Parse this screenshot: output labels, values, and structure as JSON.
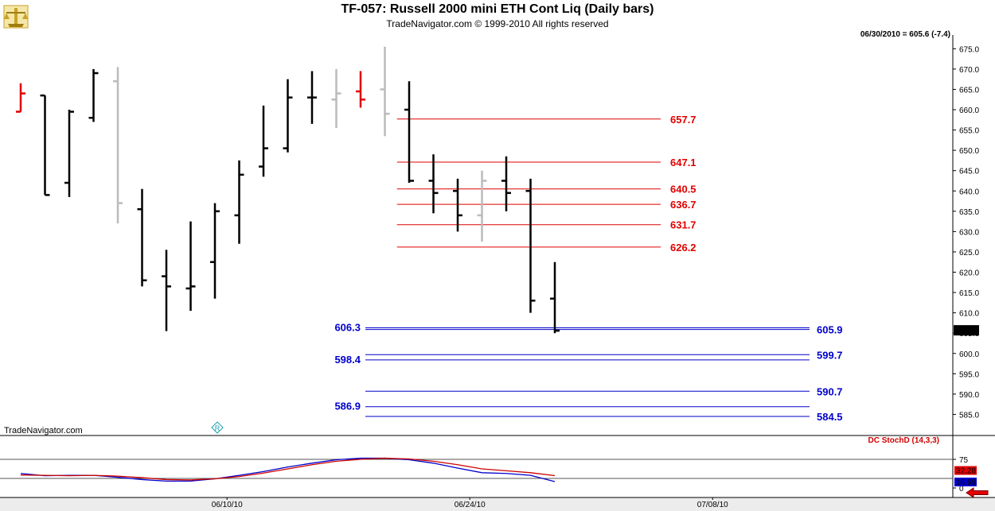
{
  "header": {
    "title": "TF-057:  Russell 2000 mini ETH Cont Liq  (Daily bars)",
    "subtitle": "TradeNavigator.com © 1999-2010 All rights reserved",
    "quote": "06/30/2010 = 605.6 (-7.4)"
  },
  "watermark": "TradeNavigator.com",
  "colors": {
    "bar_black": "#000000",
    "bar_gray": "#bbbbbb",
    "bar_red": "#e00000",
    "level_red": "#e00000",
    "level_blue": "#0000cc",
    "stoch_k": "#0000cc",
    "stoch_d": "#cc0000"
  },
  "icons": {
    "logo": "trade-navigator-logo-icon",
    "marker": "r-diamond-icon",
    "back": "red-left-arrow-icon"
  },
  "chart_data": [
    {
      "type": "ohlc",
      "ylim": [
        580,
        678
      ],
      "yticks": [
        585,
        590,
        595,
        600,
        605,
        610,
        615,
        620,
        625,
        630,
        635,
        640,
        645,
        650,
        655,
        660,
        665,
        670,
        675
      ],
      "ytick_labels": [
        "585.0",
        "590.0",
        "595.0",
        "600.0",
        "605.0",
        "610.0",
        "615.0",
        "620.0",
        "625.0",
        "630.0",
        "635.0",
        "640.0",
        "645.0",
        "650.0",
        "655.0",
        "660.0",
        "665.0",
        "670.0",
        "675.0"
      ],
      "x_labels": [
        {
          "label": "06/10/10",
          "index": 8.5
        },
        {
          "label": "06/24/10",
          "index": 18.5
        },
        {
          "label": "07/08/10",
          "index": 28.5
        }
      ],
      "last_price_label": "605.6",
      "last_price": 605.6,
      "bars": [
        {
          "o": 659.5,
          "h": 666.5,
          "l": 659.5,
          "c": 664.0,
          "color": "red"
        },
        {
          "o": 663.5,
          "h": 663.5,
          "l": 639.0,
          "c": 639.0,
          "color": "black"
        },
        {
          "o": 642.0,
          "h": 660.0,
          "l": 638.5,
          "c": 659.5,
          "color": "black"
        },
        {
          "o": 658.0,
          "h": 670.0,
          "l": 657.0,
          "c": 669.0,
          "color": "black"
        },
        {
          "o": 667.0,
          "h": 670.5,
          "l": 632.0,
          "c": 637.0,
          "color": "gray"
        },
        {
          "o": 635.5,
          "h": 640.5,
          "l": 616.5,
          "c": 618.0,
          "color": "black"
        },
        {
          "o": 619.0,
          "h": 625.5,
          "l": 605.5,
          "c": 616.5,
          "color": "black"
        },
        {
          "o": 616.0,
          "h": 632.5,
          "l": 610.5,
          "c": 616.5,
          "color": "black"
        },
        {
          "o": 622.5,
          "h": 637.0,
          "l": 613.5,
          "c": 635.0,
          "color": "black"
        },
        {
          "o": 634.0,
          "h": 647.5,
          "l": 627.0,
          "c": 644.0,
          "color": "black"
        },
        {
          "o": 646.0,
          "h": 661.0,
          "l": 643.5,
          "c": 650.5,
          "color": "black"
        },
        {
          "o": 650.5,
          "h": 667.5,
          "l": 649.5,
          "c": 663.0,
          "color": "black"
        },
        {
          "o": 663.0,
          "h": 669.5,
          "l": 656.5,
          "c": 663.0,
          "color": "black"
        },
        {
          "o": 662.5,
          "h": 670.0,
          "l": 655.5,
          "c": 664.0,
          "color": "gray"
        },
        {
          "o": 664.5,
          "h": 669.5,
          "l": 660.5,
          "c": 662.5,
          "color": "red"
        },
        {
          "o": 665.0,
          "h": 675.5,
          "l": 653.5,
          "c": 659.0,
          "color": "gray"
        },
        {
          "o": 660.0,
          "h": 667.0,
          "l": 642.0,
          "c": 642.5,
          "color": "black"
        },
        {
          "o": 642.5,
          "h": 649.0,
          "l": 634.5,
          "c": 639.5,
          "color": "black"
        },
        {
          "o": 640.0,
          "h": 643.0,
          "l": 630.0,
          "c": 634.0,
          "color": "black"
        },
        {
          "o": 634.0,
          "h": 645.0,
          "l": 627.5,
          "c": 642.5,
          "color": "gray"
        },
        {
          "o": 642.5,
          "h": 648.5,
          "l": 635.0,
          "c": 639.5,
          "color": "black"
        },
        {
          "o": 640.0,
          "h": 643.0,
          "l": 610.0,
          "c": 613.0,
          "color": "black"
        },
        {
          "o": 613.5,
          "h": 622.5,
          "l": 605.0,
          "c": 605.6,
          "color": "black"
        }
      ],
      "levels_red": [
        {
          "value": 657.7,
          "label": "657.7",
          "from_index": 15.5
        },
        {
          "value": 647.1,
          "label": "647.1",
          "from_index": 15.5
        },
        {
          "value": 640.5,
          "label": "640.5",
          "from_index": 15.5
        },
        {
          "value": 636.7,
          "label": "636.7",
          "from_index": 15.5
        },
        {
          "value": 631.7,
          "label": "631.7",
          "from_index": 15.5
        },
        {
          "value": 626.2,
          "label": "626.2",
          "from_index": 15.5
        }
      ],
      "levels_blue": [
        {
          "value": 606.3,
          "label": "606.3",
          "side": "left"
        },
        {
          "value": 605.9,
          "label": "605.9",
          "side": "right"
        },
        {
          "value": 599.7,
          "label": "599.7",
          "side": "right"
        },
        {
          "value": 598.4,
          "label": "598.4",
          "side": "left"
        },
        {
          "value": 590.7,
          "label": "590.7",
          "side": "right"
        },
        {
          "value": 586.9,
          "label": "586.9",
          "side": "left"
        },
        {
          "value": 584.5,
          "label": "584.5",
          "side": "right"
        }
      ]
    },
    {
      "type": "line",
      "title": "DC StochD (14,3,3)",
      "ylim": [
        0,
        100
      ],
      "yticks": [
        0,
        75
      ],
      "ytick_labels": [
        "0",
        "75"
      ],
      "hlines": [
        75,
        25
      ],
      "last_values": [
        {
          "label": "32.28",
          "value": 32.28,
          "bg": "#e00000"
        },
        {
          "label": "16.69",
          "value": 16.69,
          "bg": "#0000cc"
        }
      ],
      "series": [
        {
          "color": "blue",
          "values": [
            38,
            32,
            33,
            33,
            28,
            22,
            18,
            18,
            24,
            33,
            43,
            55,
            65,
            74,
            78,
            78,
            74,
            65,
            52,
            40,
            38,
            33,
            16.69
          ]
        },
        {
          "color": "red",
          "values": [
            34,
            33,
            32,
            33,
            31,
            27,
            22,
            21,
            24,
            30,
            39,
            50,
            61,
            70,
            75,
            78,
            76,
            70,
            61,
            50,
            45,
            40,
            32.28
          ]
        }
      ]
    }
  ]
}
